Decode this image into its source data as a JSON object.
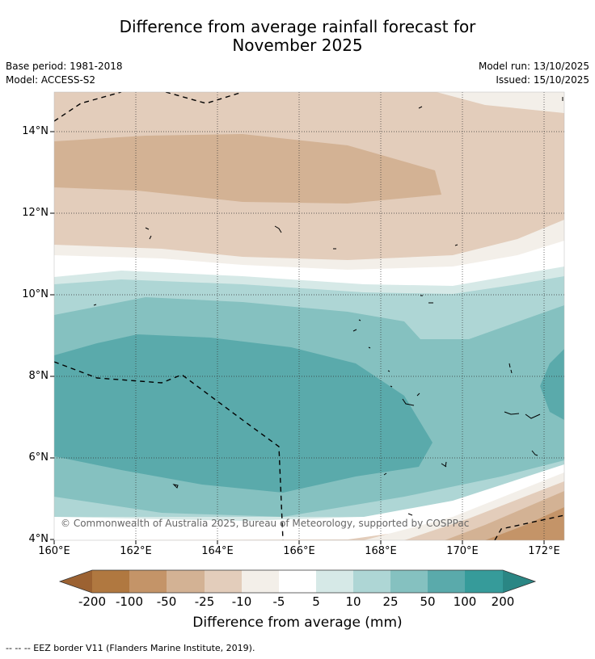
{
  "title_line1": "Difference from average rainfall forecast for",
  "title_line2": "November 2025",
  "base_period": "Base period: 1981-2018",
  "model": "Model: ACCESS-S2",
  "model_run": "Model run: 13/10/2025",
  "issued": "Issued: 15/10/2025",
  "lat_labels": [
    "14°N",
    "12°N",
    "10°N",
    "8°N",
    "6°N",
    "4°N"
  ],
  "lon_labels": [
    "160°E",
    "162°E",
    "164°E",
    "166°E",
    "168°E",
    "170°E",
    "172°E"
  ],
  "copyright": "© Commonwealth of Australia 2025, Bureau of Meteorology, supported by COSPPac",
  "colorbar": {
    "title": "Difference from average (mm)",
    "labels": [
      "-200",
      "-100",
      "-50",
      "-25",
      "-10",
      "-5",
      "5",
      "10",
      "25",
      "50",
      "100",
      "200"
    ],
    "colors": {
      "lt_neg200": "#9c6232",
      "c1": "#b07840",
      "c2": "#c49468",
      "c3": "#d3b294",
      "c4": "#e3cdbb",
      "c5": "#f3efe9",
      "c6": "#ffffff",
      "c7": "#d6e9e7",
      "c8": "#aed6d5",
      "c9": "#85c1c0",
      "c10": "#5aaaab",
      "c11": "#369b9a",
      "gt_200": "#2a8684"
    }
  },
  "footnote": "--  --  -- EEZ border V11 (Flanders Marine Institute, 2019)."
}
